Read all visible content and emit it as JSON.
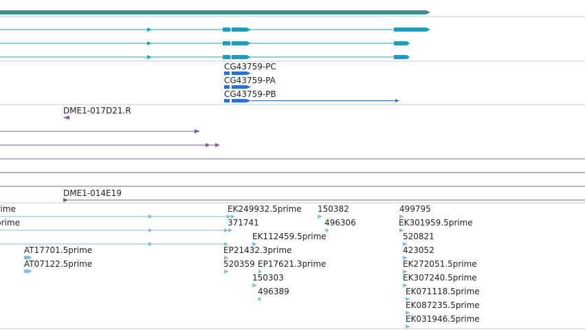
{
  "colors": {
    "gene": "#3a8f8f",
    "transcript": "#1a9fbc",
    "cds": "#2a6fd6",
    "est": "#7a5aa8",
    "read": "#7fbfe0",
    "separator": "#c8c8c8",
    "label": "#222222"
  },
  "tracks": {
    "gene_bar": {
      "name": "gene-span-bar"
    },
    "cdna_transcripts": {
      "count": 3
    },
    "cds_models": [
      {
        "label": "CG43759-PC"
      },
      {
        "label": "CG43759-PA"
      },
      {
        "label": "CG43759-PB"
      }
    ],
    "est_alignments": [
      {
        "label": "DME1-017D21.R"
      },
      {
        "label": "DME1-014E19"
      }
    ],
    "read_features": [
      {
        "label": "EK249932.5prime"
      },
      {
        "label": "150382"
      },
      {
        "label": "499795"
      },
      {
        "label": "371741"
      },
      {
        "label": "496306"
      },
      {
        "label": "EK301959.5prime"
      },
      {
        "label": "EK112459.5prime"
      },
      {
        "label": "520821"
      },
      {
        "label": "AT17701.5prime"
      },
      {
        "label": "EP21432.3prime"
      },
      {
        "label": "423052"
      },
      {
        "label": "AT07122.5prime"
      },
      {
        "label": "520359"
      },
      {
        "label": "EP17621.3prime"
      },
      {
        "label": "EK272051.5prime"
      },
      {
        "label": "150303"
      },
      {
        "label": "EK307240.5prime"
      },
      {
        "label": "496389"
      },
      {
        "label": "EK071118.5prime"
      },
      {
        "label": "EK087235.5prime"
      },
      {
        "label": "EK031946.5prime"
      },
      {
        "label": "prime"
      },
      {
        "label": "prime"
      }
    ]
  }
}
